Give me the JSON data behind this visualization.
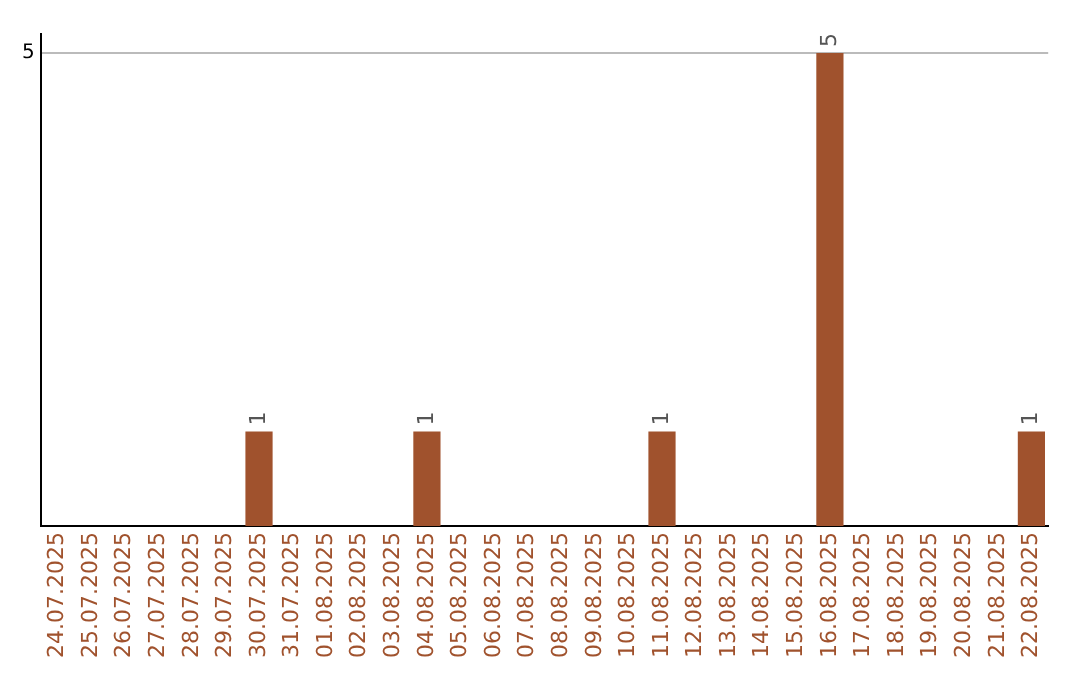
{
  "chart_data": {
    "type": "bar",
    "categories": [
      "24.07.2025",
      "25.07.2025",
      "26.07.2025",
      "27.07.2025",
      "28.07.2025",
      "29.07.2025",
      "30.07.2025",
      "31.07.2025",
      "01.08.2025",
      "02.08.2025",
      "03.08.2025",
      "04.08.2025",
      "05.08.2025",
      "06.08.2025",
      "07.08.2025",
      "08.08.2025",
      "09.08.2025",
      "10.08.2025",
      "11.08.2025",
      "12.08.2025",
      "13.08.2025",
      "14.08.2025",
      "15.08.2025",
      "16.08.2025",
      "17.08.2025",
      "18.08.2025",
      "19.08.2025",
      "20.08.2025",
      "21.08.2025",
      "22.08.2025"
    ],
    "values": [
      0,
      0,
      0,
      0,
      0,
      0,
      1,
      0,
      0,
      0,
      0,
      1,
      0,
      0,
      0,
      0,
      0,
      0,
      1,
      0,
      0,
      0,
      0,
      5,
      0,
      0,
      0,
      0,
      0,
      1
    ],
    "value_labels": [
      null,
      null,
      null,
      null,
      null,
      null,
      "1",
      null,
      null,
      null,
      null,
      "1",
      null,
      null,
      null,
      null,
      null,
      null,
      "1",
      null,
      null,
      null,
      null,
      "5",
      null,
      null,
      null,
      null,
      null,
      "1"
    ],
    "color": "#a0522d",
    "ylim": [
      0,
      5.2
    ],
    "yticks": [
      5
    ],
    "grid": "y",
    "legend": false
  }
}
